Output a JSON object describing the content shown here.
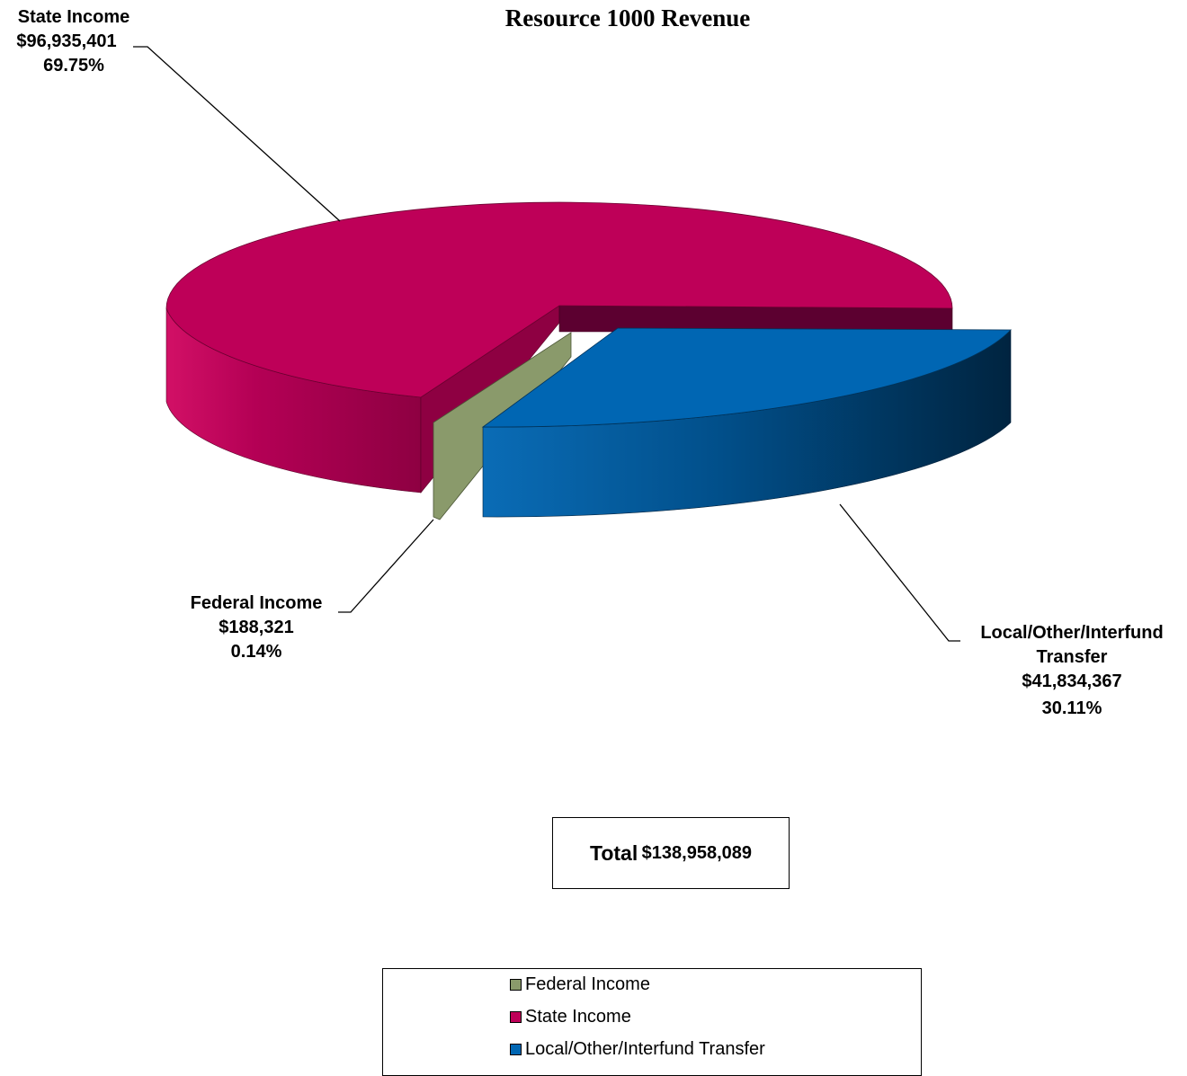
{
  "chart_data": {
    "type": "pie",
    "title": "Resource 1000 Revenue",
    "slices": [
      {
        "label": "Federal Income",
        "amount_label": "$188,321",
        "percent_label": "0.14%",
        "value": 188321,
        "percent": 0.14,
        "color": "#8A9A6B"
      },
      {
        "label": "State Income",
        "amount_label": "$96,935,401",
        "percent_label": "69.75%",
        "value": 96935401,
        "percent": 69.75,
        "color": "#BE0058"
      },
      {
        "label": "Local/Other/Interfund Transfer",
        "label_lines": [
          "Local/Other/Interfund",
          "Transfer"
        ],
        "amount_label": "$41,834,367",
        "percent_label": "30.11%",
        "value": 41834367,
        "percent": 30.11,
        "color": "#0066B3"
      }
    ],
    "total_label": "Total",
    "total_value": "$138,958,089",
    "legend": [
      "Federal Income",
      "State Income",
      "Local/Other/Interfund Transfer"
    ],
    "legend_placement": "bottom",
    "three_d": true
  }
}
